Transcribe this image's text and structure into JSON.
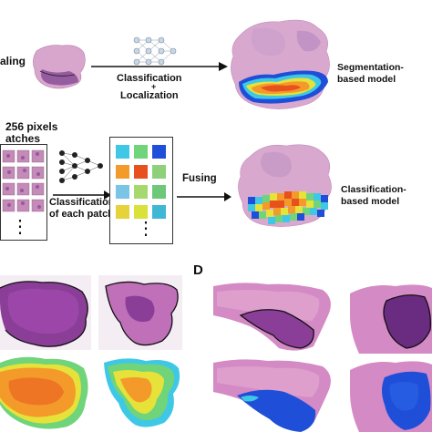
{
  "top": {
    "scaling_fragment": "aling",
    "step1_line1": "Classification",
    "step1_plus": "+",
    "step1_line2": "Localization",
    "result1_line1": "Segmentation-",
    "result1_line2": "based model"
  },
  "middle": {
    "pixels_fragment": "256 pixels",
    "patches_fragment": "atches",
    "step2_line1": "Classification",
    "step2_line2": "of each patch",
    "fusing_label": "Fusing",
    "result2_line1": "Classification-",
    "result2_line2": "based model",
    "vertical_dots": "⋮"
  },
  "bottom": {
    "panel_d_label": "D"
  },
  "colors": {
    "tissue_pink": "#d89bc4",
    "tissue_purple": "#7a3a8a",
    "heat_red": "#e8501e",
    "heat_orange": "#f39a2a",
    "heat_yellow": "#e6e23a",
    "heat_green": "#6fd47a",
    "heat_cyan": "#3fc8e6",
    "heat_blue": "#1f4fd8",
    "arrow": "#111111"
  }
}
